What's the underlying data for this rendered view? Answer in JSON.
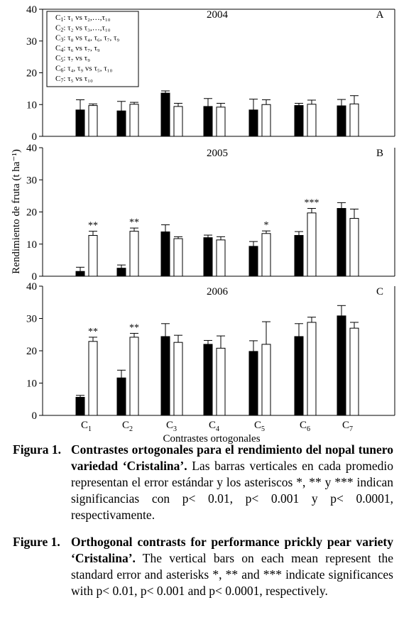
{
  "chart_data": {
    "type": "bar",
    "ylabel": "Rendimiento de fruta (t ha⁻¹)",
    "xlabel": "Contrastes ortogonales",
    "categories": [
      "C1",
      "C2",
      "C3",
      "C4",
      "C5",
      "C6",
      "C7"
    ],
    "category_subscripts": [
      "1",
      "2",
      "3",
      "4",
      "5",
      "6",
      "7"
    ],
    "ylim": [
      0,
      40
    ],
    "yticks": [
      "0",
      "10",
      "20",
      "30",
      "40"
    ],
    "legend_placement": "top-left of panel A",
    "legend": [
      {
        "c": "1",
        "text": "τ₁ vs τ₂,…,τ₁₀"
      },
      {
        "c": "2",
        "text": "τ₂ vs τ₃,…,τ₁₀"
      },
      {
        "c": "3",
        "text": "τ₈ vs τ₄, τ₆, τ₇, τ₉"
      },
      {
        "c": "4",
        "text": "τ₆ vs τ₇, τ₉"
      },
      {
        "c": "5",
        "text": "τ₇ vs τ₉"
      },
      {
        "c": "6",
        "text": "τ₄, τ₉ vs τ₅, τ₁₀"
      },
      {
        "c": "7",
        "text": "τ₅ vs τ₁₀"
      }
    ],
    "bar_colors": {
      "first": "#000000",
      "second": "#ffffff"
    },
    "panels": [
      {
        "letter": "A",
        "year": "2004",
        "series": [
          {
            "values": [
              8.3,
              8.0,
              13.6,
              9.4,
              8.3,
              9.7,
              9.6
            ],
            "errors": [
              3.2,
              3.0,
              0.7,
              2.5,
              3.4,
              0.7,
              2.0
            ]
          },
          {
            "values": [
              9.7,
              10.1,
              9.4,
              9.2,
              10.0,
              10.1,
              10.2
            ],
            "errors": [
              0.5,
              0.6,
              1.0,
              1.2,
              1.5,
              1.3,
              2.6
            ]
          }
        ],
        "significance": [
          "",
          "",
          "",
          "",
          "",
          "",
          ""
        ]
      },
      {
        "letter": "B",
        "year": "2005",
        "series": [
          {
            "values": [
              1.5,
              2.5,
              13.8,
              12.0,
              9.3,
              12.7,
              21.1
            ],
            "errors": [
              1.3,
              1.0,
              2.2,
              0.8,
              1.5,
              1.2,
              1.8
            ]
          },
          {
            "values": [
              12.7,
              14.0,
              11.7,
              11.3,
              13.3,
              19.7,
              18.0
            ],
            "errors": [
              1.3,
              1.0,
              0.6,
              1.0,
              0.8,
              1.4,
              2.9
            ]
          }
        ],
        "significance": [
          "**",
          "**",
          "",
          "",
          "*",
          "***",
          ""
        ]
      },
      {
        "letter": "C",
        "year": "2006",
        "series": [
          {
            "values": [
              5.6,
              11.6,
              24.4,
              22.0,
              19.8,
              24.4,
              30.8
            ],
            "errors": [
              0.6,
              2.4,
              4.0,
              1.2,
              3.3,
              4.0,
              3.2
            ]
          },
          {
            "values": [
              22.9,
              24.2,
              22.6,
              20.8,
              22.0,
              28.8,
              27.0
            ],
            "errors": [
              1.3,
              1.2,
              2.2,
              3.8,
              7.0,
              1.6,
              1.8
            ]
          }
        ],
        "significance": [
          "**",
          "**",
          "",
          "",
          "",
          "",
          ""
        ]
      }
    ]
  },
  "captions": {
    "es": {
      "fig": "Figura 1.",
      "bold": "Contrastes ortogonales para el rendimiento del nopal tunero variedad ‘Cristalina’.",
      "rest": " Las barras verticales en cada promedio representan el error estándar y los asteriscos *, ** y *** indican significancias con p< 0.01, p< 0.001 y p< 0.0001, respectivamente."
    },
    "en": {
      "fig": "Figure 1.",
      "bold": "Orthogonal contrasts for performance prickly pear variety ‘Cristalina’.",
      "rest": " The vertical bars on each mean represent the standard error and asterisks *, ** and *** indicate significances with p< 0.01, p< 0.001 and p< 0.0001, respectively."
    }
  }
}
